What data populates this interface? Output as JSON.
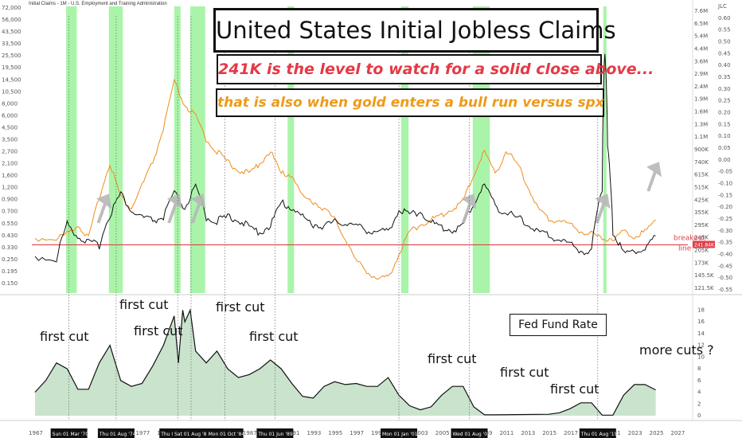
{
  "header": {
    "title": "United States Initial Jobless Claims",
    "subtitle_1": "241K is the level to watch for a solid close above...",
    "subtitle_2": "that is also when gold enters a bull run versus spx",
    "chart_id": "Initial Claims - 1M - U.S. Employment and Training Administration"
  },
  "colors": {
    "claims": "#111111",
    "gold_ratio": "#f08c1c",
    "breakout": "#e0404a",
    "recession": "#8ef08e",
    "fed_fill": "#3f9a4a",
    "arrow": "#b8b8b8"
  },
  "chart_data": [
    {
      "type": "line",
      "series": [
        {
          "x": [
            1967,
            1969,
            1970,
            1971,
            1972,
            1973,
            1974,
            1975,
            1976,
            1977,
            1978,
            1979,
            1980,
            1981,
            1982,
            1983,
            1984,
            1985,
            1986,
            1987,
            1988,
            1989,
            1990,
            1991,
            1992,
            1993,
            1994,
            1995,
            1996,
            1997,
            1998,
            1999,
            2000,
            2001,
            2002,
            2003,
            2004,
            2005,
            2006,
            2007,
            2008,
            2009,
            2010,
            2011,
            2012,
            2013,
            2014,
            2015,
            2016,
            2017,
            2018,
            2019,
            2020,
            2020.25,
            2020.5,
            2021,
            2022,
            2023,
            2024,
            2025
          ],
          "values": [
            200,
            190,
            340,
            280,
            250,
            240,
            400,
            560,
            420,
            380,
            360,
            380,
            560,
            440,
            620,
            380,
            360,
            380,
            370,
            320,
            300,
            330,
            480,
            450,
            380,
            340,
            330,
            350,
            350,
            330,
            310,
            300,
            300,
            430,
            400,
            420,
            350,
            320,
            310,
            330,
            480,
            650,
            460,
            410,
            380,
            340,
            300,
            280,
            265,
            245,
            220,
            215,
            600,
            6000,
            1200,
            300,
            210,
            220,
            225,
            280
          ]
        },
        {
          "x": [
            1967,
            1969,
            1970,
            1971,
            1972,
            1973,
            1974,
            1975,
            1976,
            1977,
            1978,
            1979,
            1980,
            1981,
            1982,
            1983,
            1984,
            1985,
            1986,
            1987,
            1988,
            1989,
            1990,
            1991,
            1992,
            1993,
            1994,
            1995,
            1996,
            1997,
            1998,
            1999,
            2000,
            2001,
            2002,
            2003,
            2004,
            2005,
            2006,
            2007,
            2008,
            2009,
            2010,
            2011,
            2012,
            2013,
            2014,
            2015,
            2016,
            2017,
            2018,
            2019,
            2020,
            2021,
            2022,
            2023,
            2024,
            2025
          ],
          "values": [
            -0.38,
            -0.38,
            -0.36,
            -0.32,
            -0.38,
            -0.2,
            -0.05,
            -0.2,
            -0.25,
            -0.15,
            -0.05,
            0.1,
            0.3,
            0.2,
            0.15,
            0.05,
            0.0,
            -0.05,
            -0.08,
            -0.1,
            -0.05,
            0.0,
            -0.1,
            -0.1,
            -0.2,
            -0.22,
            -0.25,
            -0.3,
            -0.38,
            -0.48,
            -0.52,
            -0.56,
            -0.55,
            -0.45,
            -0.35,
            -0.32,
            -0.3,
            -0.28,
            -0.25,
            -0.22,
            -0.1,
            0.0,
            -0.1,
            0.0,
            -0.05,
            -0.15,
            -0.25,
            -0.3,
            -0.3,
            -0.32,
            -0.35,
            -0.36,
            -0.38,
            -0.38,
            -0.35,
            -0.37,
            -0.35,
            -0.3
          ]
        }
      ],
      "annotations": {
        "breakout_label": "breakout line",
        "breakout_value": "241.84K"
      },
      "y_ticks_left": [
        "72,000",
        "56,000",
        "43,500",
        "33,500",
        "25,500",
        "19,500",
        "14,500",
        "10,500",
        "8,000",
        "6,000",
        "4,500",
        "3,500",
        "2,700",
        "2,100",
        "1,600",
        "1,200",
        "0.900",
        "0.700",
        "0.550",
        "0.430",
        "0.330",
        "0.250",
        "0.195",
        "0.150"
      ],
      "y_ticks_right_claims": [
        "7.6M",
        "6.5M",
        "5.4M",
        "4.4M",
        "3.6M",
        "2.9M",
        "2.4M",
        "1.9M",
        "1.6M",
        "1.3M",
        "1.1M",
        "900K",
        "740K",
        "615K",
        "515K",
        "425K",
        "355K",
        "295K",
        "245K",
        "205K",
        "173K",
        "145.5K",
        "121.5K"
      ],
      "y_ticks_right_ratio": [
        "JLC",
        "0.60",
        "0.55",
        "0.50",
        "0.45",
        "0.40",
        "0.35",
        "0.30",
        "0.25",
        "0.20",
        "0.15",
        "0.10",
        "0.05",
        "0.00",
        "-0.05",
        "-0.10",
        "-0.15",
        "-0.20",
        "-0.25",
        "-0.30",
        "-0.35",
        "-0.40",
        "-0.45",
        "-0.50",
        "-0.55"
      ],
      "recessions": [
        [
          1969.9,
          1970.9
        ],
        [
          1973.9,
          1975.2
        ],
        [
          1980.0,
          1980.6
        ],
        [
          1981.5,
          1982.9
        ],
        [
          1990.6,
          1991.2
        ],
        [
          2001.2,
          2001.9
        ],
        [
          2007.9,
          2009.5
        ],
        [
          2020.1,
          2020.4
        ]
      ],
      "arrows_x": [
        1973.2,
        1979.8,
        1982.0,
        2007.3,
        2019.8,
        2024.6
      ]
    },
    {
      "type": "area",
      "title": "Fed Fund Rate",
      "x": [
        1967,
        1968,
        1969,
        1970,
        1971,
        1972,
        1973,
        1974,
        1975,
        1976,
        1977,
        1978,
        1979,
        1980,
        1980.4,
        1980.8,
        1981,
        1981.5,
        1982,
        1983,
        1984,
        1985,
        1986,
        1987,
        1988,
        1989,
        1990,
        1991,
        1992,
        1993,
        1994,
        1995,
        1996,
        1997,
        1998,
        1999,
        2000,
        2001,
        2002,
        2003,
        2004,
        2005,
        2006,
        2007,
        2008,
        2009,
        2010,
        2015,
        2016,
        2017,
        2018,
        2019,
        2020,
        2021,
        2022,
        2023,
        2024,
        2025
      ],
      "values": [
        4.0,
        6.0,
        9.0,
        8.0,
        4.5,
        4.5,
        9.0,
        12.0,
        6.0,
        5.0,
        5.5,
        8.5,
        12.0,
        17.0,
        9.0,
        18.0,
        16.0,
        18.0,
        11.0,
        9.0,
        11.0,
        8.0,
        6.5,
        7.0,
        8.0,
        9.5,
        8.0,
        5.5,
        3.3,
        3.0,
        5.0,
        5.8,
        5.3,
        5.5,
        5.0,
        5.0,
        6.5,
        3.5,
        1.7,
        1.0,
        1.5,
        3.5,
        5.0,
        5.0,
        1.5,
        0.15,
        0.15,
        0.25,
        0.5,
        1.2,
        2.2,
        2.2,
        0.1,
        0.1,
        3.5,
        5.3,
        5.3,
        4.4
      ],
      "ylim": [
        0,
        19
      ],
      "y_ticks": [
        "18",
        "16",
        "14",
        "12",
        "10",
        "8",
        "6",
        "4",
        "2",
        "0"
      ],
      "annotations": [
        "first cut",
        "first cut",
        "first cut",
        "first cut",
        "first cut",
        "first cut",
        "first cut",
        "first cut",
        "more cuts ?"
      ]
    }
  ],
  "x_axis": {
    "ticks": [
      "1967",
      "1971",
      "1975",
      "1977",
      "1979",
      "1983",
      "1985",
      "1987",
      "1989",
      "1991",
      "1993",
      "1995",
      "1997",
      "1999",
      "2001",
      "2003",
      "2005",
      "2007",
      "2009",
      "2011",
      "2013",
      "2015",
      "2017",
      "2019",
      "2021",
      "2023",
      "2025",
      "2027"
    ],
    "date_tags": [
      "Sun 01 Mar '70",
      "Thu 01 Aug '74",
      "Thu 01 May '80",
      "Sat 01 Aug '81",
      "Mon 01 Oct '84",
      "Thu 01 Jun '89",
      "Mon 01 Jan '01",
      "Wed 01 Aug '07",
      "Thu 01 Aug '19"
    ]
  }
}
